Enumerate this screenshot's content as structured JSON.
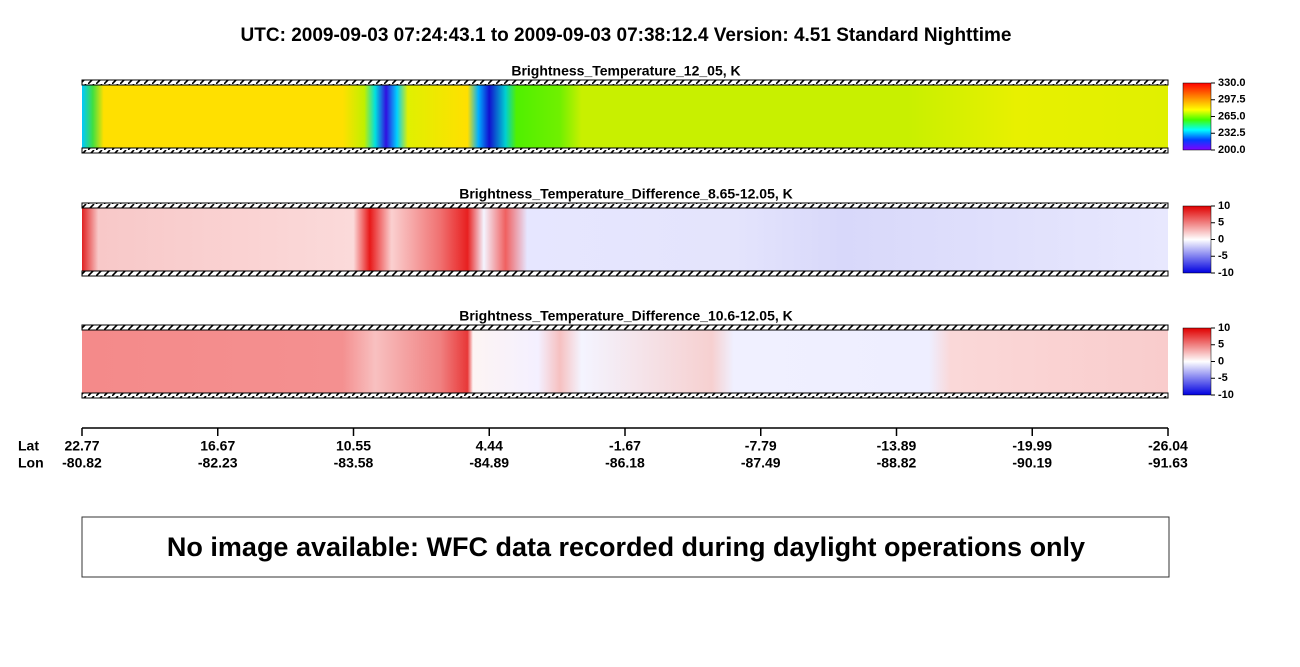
{
  "header": {
    "title": "UTC:  2009-09-03   07:24:43.1  to  2009-09-03   07:38:12.4    Version: 4.51  Standard Nighttime"
  },
  "panels": [
    {
      "title": "Brightness_Temperature_12_05, K",
      "colorbar_labels": [
        "330.0",
        "297.5",
        "265.0",
        "232.5",
        "200.0"
      ]
    },
    {
      "title": "Brightness_Temperature_Difference_8.65-12.05, K",
      "colorbar_labels": [
        "10",
        "5",
        "0",
        "-5",
        "-10"
      ]
    },
    {
      "title": "Brightness_Temperature_Difference_10.6-12.05, K",
      "colorbar_labels": [
        "10",
        "5",
        "0",
        "-5",
        "-10"
      ]
    }
  ],
  "axis": {
    "row_labels": [
      "Lat",
      "Lon"
    ],
    "lat": [
      "22.77",
      "16.67",
      "10.55",
      "4.44",
      "-1.67",
      "-7.79",
      "-13.89",
      "-19.99",
      "-26.04"
    ],
    "lon": [
      "-80.82",
      "-82.23",
      "-83.58",
      "-84.89",
      "-86.18",
      "-87.49",
      "-88.82",
      "-90.19",
      "-91.63"
    ]
  },
  "message": "No image available: WFC data recorded during daylight operations only"
}
